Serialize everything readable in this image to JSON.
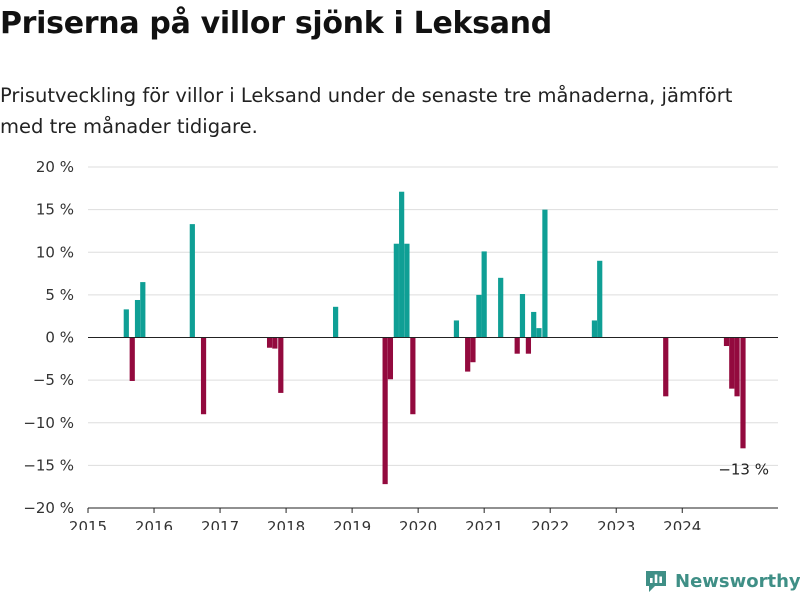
{
  "title": "Priserna på villor sjönk i Leksand",
  "subtitle": "Prisutveckling för villor i Leksand under de senaste tre månaderna, jämfört med tre månader tidigare.",
  "brand": {
    "name": "Newsworthy",
    "icon": "newsworthy-logo-icon",
    "color": "#3f8f86"
  },
  "colors": {
    "positive": "#0f9f95",
    "negative": "#930a3e",
    "grid": "#dddddd"
  },
  "chart_data": {
    "type": "bar",
    "ylim": [
      -20,
      20
    ],
    "xlim": [
      2015,
      2025.45
    ],
    "yticks": [
      20,
      15,
      10,
      5,
      0,
      -5,
      -10,
      -15,
      -20
    ],
    "ytick_labels": [
      "20 %",
      "15 %",
      "10 %",
      "5 %",
      "0 %",
      "−5 %",
      "−10 %",
      "−15 %",
      "−20 %"
    ],
    "xticks": [
      2015,
      2016,
      2017,
      2018,
      2019,
      2020,
      2021,
      2022,
      2023,
      2024
    ],
    "xtick_labels": [
      "2015",
      "2016",
      "2017",
      "2018",
      "2019",
      "2020",
      "2021",
      "2022",
      "2023",
      "2024"
    ],
    "grid": true,
    "annotation": {
      "text": "−13 %",
      "x": 2024.92,
      "y": -13
    },
    "points": [
      {
        "x": 2015.58,
        "y": 3.3
      },
      {
        "x": 2015.67,
        "y": -5.1
      },
      {
        "x": 2015.75,
        "y": 4.4
      },
      {
        "x": 2015.83,
        "y": 6.5
      },
      {
        "x": 2016.58,
        "y": 13.3
      },
      {
        "x": 2016.75,
        "y": -9.0
      },
      {
        "x": 2017.75,
        "y": -1.2
      },
      {
        "x": 2017.83,
        "y": -1.3
      },
      {
        "x": 2017.92,
        "y": -6.5
      },
      {
        "x": 2018.75,
        "y": 3.6
      },
      {
        "x": 2019.5,
        "y": -17.2
      },
      {
        "x": 2019.58,
        "y": -4.9
      },
      {
        "x": 2019.67,
        "y": 11.0
      },
      {
        "x": 2019.75,
        "y": 17.1
      },
      {
        "x": 2019.83,
        "y": 11.0
      },
      {
        "x": 2019.92,
        "y": -9.0
      },
      {
        "x": 2020.58,
        "y": 2.0
      },
      {
        "x": 2020.75,
        "y": -4.0
      },
      {
        "x": 2020.83,
        "y": -2.9
      },
      {
        "x": 2020.92,
        "y": 5.0
      },
      {
        "x": 2021.0,
        "y": 10.1
      },
      {
        "x": 2021.25,
        "y": 7.0
      },
      {
        "x": 2021.5,
        "y": -1.9
      },
      {
        "x": 2021.58,
        "y": 5.1
      },
      {
        "x": 2021.67,
        "y": -1.9
      },
      {
        "x": 2021.75,
        "y": 3.0
      },
      {
        "x": 2021.83,
        "y": 1.1
      },
      {
        "x": 2021.92,
        "y": 15.0
      },
      {
        "x": 2022.67,
        "y": 2.0
      },
      {
        "x": 2022.75,
        "y": 9.0
      },
      {
        "x": 2023.75,
        "y": -6.9
      },
      {
        "x": 2024.67,
        "y": -1.0
      },
      {
        "x": 2024.75,
        "y": -6.0
      },
      {
        "x": 2024.83,
        "y": -6.9
      },
      {
        "x": 2024.92,
        "y": -13.0
      }
    ]
  }
}
